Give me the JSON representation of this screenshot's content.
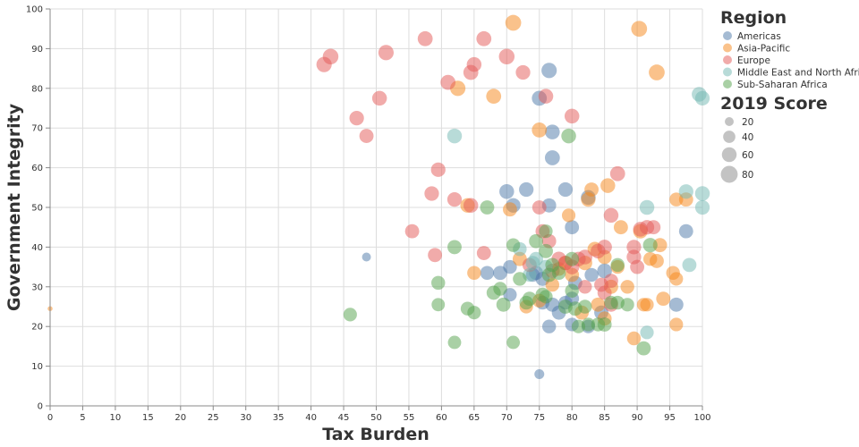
{
  "chart_data": {
    "type": "scatter",
    "xlabel": "Tax Burden",
    "ylabel": "Government Integrity",
    "xlim": [
      0,
      100
    ],
    "ylim": [
      0,
      100
    ],
    "xticks": [
      0,
      5,
      10,
      15,
      20,
      25,
      30,
      35,
      40,
      45,
      50,
      55,
      60,
      65,
      70,
      75,
      80,
      85,
      90,
      95,
      100
    ],
    "yticks": [
      0,
      10,
      20,
      30,
      40,
      50,
      60,
      70,
      80,
      90,
      100
    ],
    "grid": true,
    "legend_position": "right",
    "color_legend_title": "Region",
    "size_legend_title": "2019 Score",
    "size_legend": [
      20,
      40,
      60,
      80
    ],
    "series": [
      {
        "name": "Americas",
        "color": "#4c78a8",
        "points": [
          [
            76.5,
            84.5,
            65
          ],
          [
            75,
            77.5,
            62
          ],
          [
            77,
            69,
            60
          ],
          [
            77,
            62.5,
            62
          ],
          [
            73,
            54.5,
            58
          ],
          [
            70,
            54,
            60
          ],
          [
            79,
            54.5,
            58
          ],
          [
            82.5,
            52.5,
            60
          ],
          [
            71,
            50.5,
            58
          ],
          [
            76.5,
            50.5,
            55
          ],
          [
            80,
            45,
            55
          ],
          [
            97.5,
            44,
            55
          ],
          [
            48.5,
            37.5,
            20
          ],
          [
            67,
            33.5,
            52
          ],
          [
            69,
            33.5,
            55
          ],
          [
            70.5,
            35,
            52
          ],
          [
            70.5,
            28,
            50
          ],
          [
            74,
            33,
            52
          ],
          [
            75.5,
            32,
            55
          ],
          [
            77,
            25.5,
            55
          ],
          [
            79,
            26,
            52
          ],
          [
            80,
            27,
            55
          ],
          [
            80,
            20.5,
            50
          ],
          [
            76.5,
            20,
            52
          ],
          [
            78,
            23.5,
            55
          ],
          [
            82.5,
            20,
            50
          ],
          [
            84.5,
            23.5,
            55
          ],
          [
            85,
            34,
            60
          ],
          [
            80.5,
            31,
            55
          ],
          [
            96,
            25.5,
            55
          ],
          [
            75,
            8,
            25
          ],
          [
            74.5,
            33.5,
            55
          ],
          [
            75.5,
            26,
            52
          ],
          [
            83,
            33,
            52
          ]
        ]
      },
      {
        "name": "Asia-Pacific",
        "color": "#f58518",
        "points": [
          [
            71,
            96.5,
            70
          ],
          [
            90.3,
            95,
            70
          ],
          [
            93,
            84,
            70
          ],
          [
            62.5,
            80,
            65
          ],
          [
            68,
            78,
            62
          ],
          [
            75,
            69.5,
            62
          ],
          [
            64,
            50.5,
            58
          ],
          [
            70.5,
            49.5,
            55
          ],
          [
            85.5,
            55.5,
            60
          ],
          [
            83,
            54.5,
            55
          ],
          [
            82.5,
            52,
            58
          ],
          [
            79.5,
            48,
            50
          ],
          [
            87.5,
            45,
            55
          ],
          [
            90.5,
            44,
            58
          ],
          [
            96,
            52,
            52
          ],
          [
            97.5,
            52,
            55
          ],
          [
            93.5,
            40.5,
            55
          ],
          [
            92,
            37,
            52
          ],
          [
            93,
            36.5,
            55
          ],
          [
            83.5,
            39.5,
            58
          ],
          [
            85,
            37.5,
            55
          ],
          [
            82,
            36,
            58
          ],
          [
            79,
            36,
            55
          ],
          [
            78,
            34.5,
            52
          ],
          [
            80,
            33,
            55
          ],
          [
            77,
            30.5,
            52
          ],
          [
            73,
            25,
            50
          ],
          [
            75,
            26.5,
            52
          ],
          [
            72,
            37,
            55
          ],
          [
            65,
            33.5,
            52
          ],
          [
            87,
            35,
            52
          ],
          [
            86,
            30,
            55
          ],
          [
            88.5,
            30,
            52
          ],
          [
            95.5,
            33.5,
            52
          ],
          [
            96,
            32,
            50
          ],
          [
            94,
            27,
            55
          ],
          [
            91,
            25.5,
            50
          ],
          [
            91.5,
            25.5,
            50
          ],
          [
            96,
            20.5,
            50
          ],
          [
            89.5,
            17,
            52
          ],
          [
            81.5,
            23.5,
            55
          ],
          [
            84,
            25.5,
            55
          ],
          [
            85,
            22,
            55
          ],
          [
            0,
            24.5,
            5
          ]
        ]
      },
      {
        "name": "Europe",
        "color": "#e45756",
        "points": [
          [
            42,
            86,
            65
          ],
          [
            43,
            88,
            68
          ],
          [
            51.5,
            89,
            65
          ],
          [
            57.5,
            92.5,
            62
          ],
          [
            66.5,
            92.5,
            62
          ],
          [
            70,
            88,
            68
          ],
          [
            65,
            86,
            60
          ],
          [
            64.5,
            84,
            62
          ],
          [
            72.5,
            84,
            58
          ],
          [
            61,
            81.5,
            62
          ],
          [
            50.5,
            77.5,
            60
          ],
          [
            47,
            72.5,
            58
          ],
          [
            48.5,
            68,
            55
          ],
          [
            76,
            78,
            60
          ],
          [
            80,
            73,
            60
          ],
          [
            87,
            58.5,
            62
          ],
          [
            59.5,
            59.5,
            58
          ],
          [
            58.5,
            53.5,
            58
          ],
          [
            62,
            52,
            58
          ],
          [
            64.5,
            50.5,
            60
          ],
          [
            86,
            48,
            60
          ],
          [
            75,
            50,
            55
          ],
          [
            76.5,
            41.5,
            55
          ],
          [
            75.5,
            44,
            55
          ],
          [
            59,
            38,
            55
          ],
          [
            66.5,
            38.5,
            55
          ],
          [
            55.5,
            44,
            55
          ],
          [
            81,
            37,
            58
          ],
          [
            82,
            37.5,
            60
          ],
          [
            84,
            39,
            60
          ],
          [
            85,
            40,
            60
          ],
          [
            89.5,
            40,
            58
          ],
          [
            90.5,
            44.5,
            60
          ],
          [
            91.5,
            45,
            58
          ],
          [
            92.5,
            45,
            55
          ],
          [
            89.5,
            37.5,
            58
          ],
          [
            90,
            35,
            55
          ],
          [
            82,
            30,
            52
          ],
          [
            84.5,
            30.5,
            55
          ],
          [
            86,
            25.5,
            55
          ],
          [
            78,
            37,
            60
          ],
          [
            79,
            36,
            58
          ],
          [
            80,
            35,
            60
          ],
          [
            77,
            34,
            58
          ],
          [
            73.5,
            35.5,
            55
          ],
          [
            85,
            28.5,
            55
          ],
          [
            86,
            31.5,
            55
          ]
        ]
      },
      {
        "name": "Middle East and North Africa",
        "color": "#72b7b2",
        "points": [
          [
            62,
            68,
            60
          ],
          [
            91.5,
            50,
            60
          ],
          [
            97.5,
            54,
            58
          ],
          [
            100,
            53.5,
            60
          ],
          [
            100,
            50,
            58
          ],
          [
            99.5,
            78.5,
            60
          ],
          [
            100,
            77.5,
            58
          ],
          [
            98,
            35.5,
            55
          ],
          [
            91.5,
            18.5,
            50
          ],
          [
            74.5,
            37,
            55
          ],
          [
            72,
            39.5,
            52
          ],
          [
            76,
            35,
            55
          ],
          [
            73.5,
            33,
            52
          ],
          [
            74,
            36,
            55
          ]
        ]
      },
      {
        "name": "Sub-Saharan Africa",
        "color": "#54a24b",
        "points": [
          [
            79.5,
            68,
            60
          ],
          [
            67,
            50,
            55
          ],
          [
            62,
            40,
            55
          ],
          [
            71,
            40.5,
            52
          ],
          [
            74.5,
            41.5,
            55
          ],
          [
            76,
            44,
            50
          ],
          [
            76,
            39,
            55
          ],
          [
            77,
            35.5,
            55
          ],
          [
            78,
            33.5,
            52
          ],
          [
            76.5,
            33,
            55
          ],
          [
            73.5,
            27,
            55
          ],
          [
            73,
            26,
            52
          ],
          [
            75.5,
            28,
            55
          ],
          [
            76,
            27.5,
            50
          ],
          [
            79,
            25,
            55
          ],
          [
            80,
            29,
            52
          ],
          [
            80.5,
            24.5,
            55
          ],
          [
            82,
            25,
            52
          ],
          [
            85,
            20.5,
            55
          ],
          [
            84,
            20.5,
            52
          ],
          [
            82.5,
            20.5,
            50
          ],
          [
            81,
            20,
            50
          ],
          [
            86,
            26,
            52
          ],
          [
            87,
            26,
            52
          ],
          [
            88.5,
            25.5,
            50
          ],
          [
            87,
            35.5,
            52
          ],
          [
            92,
            40.5,
            58
          ],
          [
            91,
            14.5,
            55
          ],
          [
            71,
            16,
            48
          ],
          [
            62,
            16,
            48
          ],
          [
            59.5,
            25.5,
            48
          ],
          [
            59.5,
            31,
            52
          ],
          [
            65,
            23.5,
            50
          ],
          [
            64,
            24.5,
            52
          ],
          [
            68,
            28.5,
            55
          ],
          [
            69,
            29.5,
            52
          ],
          [
            69.5,
            25.5,
            55
          ],
          [
            46,
            23,
            50
          ],
          [
            72,
            32,
            52
          ],
          [
            80,
            37,
            55
          ]
        ]
      }
    ]
  }
}
